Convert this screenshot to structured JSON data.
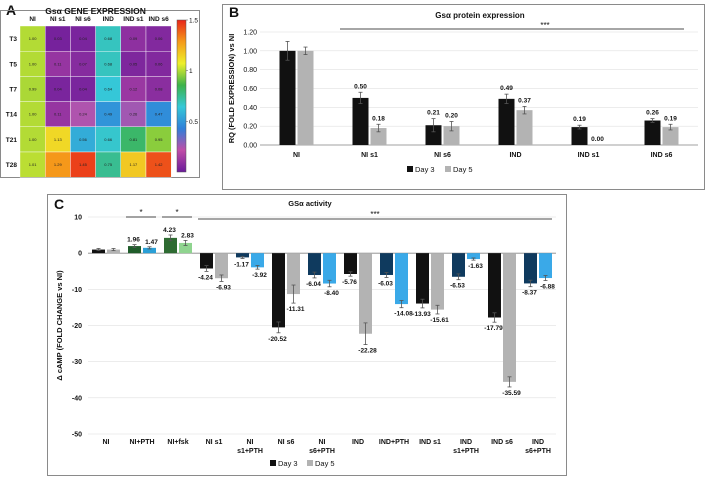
{
  "colors": {
    "day3": "#111111",
    "day5": "#b3b3b3",
    "axis": "#666666",
    "grid": "#d9d9d9"
  },
  "panel_a": {
    "letter": "A",
    "chart_data": {
      "type": "heatmap",
      "title": "Gsα GENE EXPRESSION",
      "columns": [
        "NI",
        "NI s1",
        "NI s6",
        "IND",
        "IND s1",
        "IND s6"
      ],
      "rows": [
        "T3",
        "T5",
        "T7",
        "T14",
        "T21",
        "T28"
      ],
      "values": [
        [
          1.0,
          0.03,
          0.04,
          0.68,
          0.09,
          0.06
        ],
        [
          1.0,
          0.11,
          0.07,
          0.68,
          0.05,
          0.06
        ],
        [
          0.99,
          0.04,
          0.04,
          0.64,
          0.12,
          0.08
        ],
        [
          1.0,
          0.11,
          0.24,
          0.49,
          0.26,
          0.47
        ],
        [
          1.0,
          1.13,
          0.56,
          0.66,
          0.81,
          0.95
        ],
        [
          1.01,
          1.29,
          1.45,
          0.75,
          1.17,
          1.42
        ]
      ],
      "value_labels": [
        [
          "1.00",
          "0.03",
          "0.04",
          "0.68",
          "0.09",
          "0.06"
        ],
        [
          "1.00",
          "0.11",
          "0.07",
          "0.68",
          "0.05",
          "0.06"
        ],
        [
          "0.99",
          "0.04",
          "0.04",
          "0.64",
          "0.12",
          "0.08"
        ],
        [
          "1.00",
          "0.11",
          "0.24",
          "0.49",
          "0.26",
          "0.47"
        ],
        [
          "1.00",
          "1.13",
          "0.56",
          "0.66",
          "0.81",
          "0.95"
        ],
        [
          "1.01",
          "1.29",
          "1.45",
          "0.75",
          "1.17",
          "1.42"
        ]
      ],
      "color_scale": {
        "range": [
          0,
          1.5
        ],
        "ticks": [
          "1.5",
          "1",
          "0.5"
        ],
        "tick_values": [
          1.5,
          1,
          0.5
        ],
        "stops": [
          "#6a1b9a",
          "#c04ea8",
          "#2f7fd9",
          "#35c8d8",
          "#3db24a",
          "#eef02a",
          "#f59a1a",
          "#e8251a"
        ]
      }
    }
  },
  "panel_b": {
    "letter": "B",
    "chart_data": {
      "type": "bar",
      "title": "Gsα protein expression",
      "ylabel": "RQ (FOLD EXPRESSION) vs NI",
      "xlabel": "",
      "ylim": [
        0,
        1.2
      ],
      "yticks": [
        "0.00",
        "0.20",
        "0.40",
        "0.60",
        "0.80",
        "1.00",
        "1.20"
      ],
      "ytick_values": [
        0,
        0.2,
        0.4,
        0.6,
        0.8,
        1.0,
        1.2
      ],
      "categories": [
        "NI",
        "NI s1",
        "NI s6",
        "IND",
        "IND s1",
        "IND s6"
      ],
      "series": [
        {
          "name": "Day 3",
          "values": [
            1.0,
            0.5,
            0.21,
            0.49,
            0.19,
            0.26
          ],
          "errors": [
            0.1,
            0.06,
            0.07,
            0.05,
            0.02,
            0.02
          ],
          "labels": [
            "",
            "0.50",
            "0.21",
            "0.49",
            "0.19",
            "0.26"
          ]
        },
        {
          "name": "Day 5",
          "values": [
            1.0,
            0.18,
            0.2,
            0.37,
            0.0,
            0.19
          ],
          "errors": [
            0.04,
            0.04,
            0.05,
            0.04,
            0.0,
            0.03
          ],
          "labels": [
            "",
            "0.18",
            "0.20",
            "0.37",
            "0.00",
            "0.19"
          ]
        }
      ],
      "significance": "***",
      "legend": "bottom"
    }
  },
  "panel_c": {
    "letter": "C",
    "chart_data": {
      "type": "bar",
      "title": "GSα activity",
      "ylabel": "Δ cAMP (FOLD CHANGE vs NI)",
      "xlabel": "",
      "ylim": [
        -50,
        10
      ],
      "yticks": [
        "10",
        "0",
        "-10",
        "-20",
        "-30",
        "-40",
        "-50"
      ],
      "ytick_values": [
        10,
        0,
        -10,
        -20,
        -30,
        -40,
        -50
      ],
      "categories": [
        [
          "NI"
        ],
        [
          "NI+PTH"
        ],
        [
          "NI+fsk"
        ],
        [
          "NI s1"
        ],
        [
          "NI",
          "s1+PTH"
        ],
        [
          "NI s6"
        ],
        [
          "NI",
          "s6+PTH"
        ],
        [
          "IND"
        ],
        [
          "IND+PTH"
        ],
        [
          "IND s1"
        ],
        [
          "IND",
          "s1+PTH"
        ],
        [
          "IND s6"
        ],
        [
          "IND",
          "s6+PTH"
        ]
      ],
      "series": [
        {
          "name": "Day 3",
          "values": [
            1.0,
            1.96,
            4.23,
            -4.24,
            -1.17,
            -20.52,
            -6.04,
            -5.76,
            -6.03,
            -13.93,
            -6.53,
            -17.79,
            -8.37
          ],
          "errors": [
            0.3,
            0.4,
            0.8,
            0.8,
            0.3,
            1.5,
            0.8,
            0.6,
            0.7,
            1.2,
            0.8,
            1.3,
            0.9
          ],
          "labels": [
            "",
            "1.96",
            "4.23",
            "-4.24",
            "-1.17",
            "-20.52",
            "-6.04",
            "-5.76",
            "-6.03",
            "-13.93",
            "-6.53",
            "-17.79",
            "-8.37"
          ],
          "colors": [
            "#111111",
            "#1f5c2a",
            "#2e6b32",
            "#111111",
            "#0f3a5e",
            "#111111",
            "#0f3a5e",
            "#111111",
            "#0f3a5e",
            "#111111",
            "#0f3a5e",
            "#111111",
            "#0f3a5e"
          ]
        },
        {
          "name": "Day 5",
          "values": [
            1.0,
            1.47,
            2.83,
            -6.93,
            -3.92,
            -11.31,
            -8.4,
            -22.28,
            -14.08,
            -15.61,
            -1.63,
            -35.59,
            -6.88
          ],
          "errors": [
            0.3,
            0.3,
            0.7,
            0.9,
            0.5,
            2.5,
            0.9,
            3.0,
            1.0,
            1.2,
            0.3,
            1.4,
            0.7
          ],
          "labels": [
            "",
            "1.47",
            "2.83",
            "-6.93",
            "-3.92",
            "-11.31",
            "-8.40",
            "-22.28",
            "-14.08",
            "-15.61",
            "-1.63",
            "-35.59",
            "-6.88"
          ],
          "colors": [
            "#b3b3b3",
            "#2a9fd6",
            "#8fd48f",
            "#b3b3b3",
            "#3aa9e8",
            "#b3b3b3",
            "#3aa9e8",
            "#b3b3b3",
            "#3aa9e8",
            "#b3b3b3",
            "#3aa9e8",
            "#b3b3b3",
            "#3aa9e8"
          ]
        }
      ],
      "significance": [
        {
          "text": "*",
          "from": 1,
          "to": 1
        },
        {
          "text": "*",
          "from": 2,
          "to": 2
        },
        {
          "text": "***",
          "from": 3,
          "to": 12
        }
      ],
      "legend": "bottom"
    }
  },
  "legend": {
    "day3": "Day 3",
    "day5": "Day 5"
  }
}
